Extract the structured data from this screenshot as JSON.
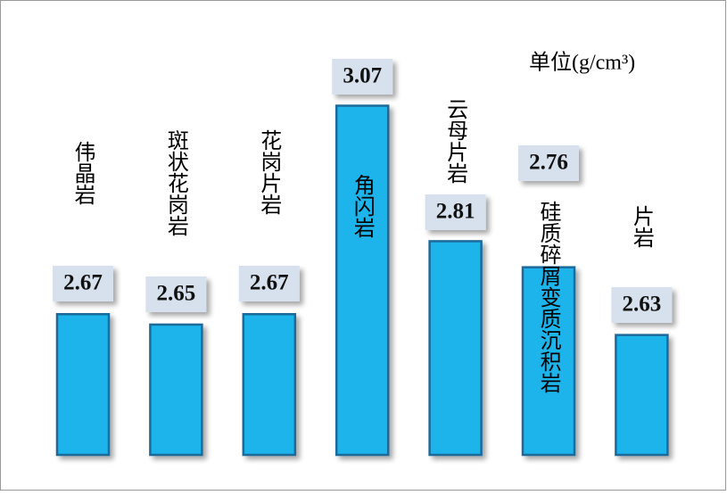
{
  "chart_data": {
    "type": "bar",
    "annotation": "单位(g/cm³)",
    "categories": [
      "伟晶岩",
      "斑状花岗岩",
      "花岗片岩",
      "角闪岩",
      "云母片岩",
      "硅质碎屑变质沉积岩",
      "片岩"
    ],
    "values": [
      2.67,
      2.65,
      2.67,
      3.07,
      2.81,
      2.76,
      2.63
    ],
    "color": "#1fb4ea",
    "ylim": [
      2.4,
      3.1
    ]
  }
}
